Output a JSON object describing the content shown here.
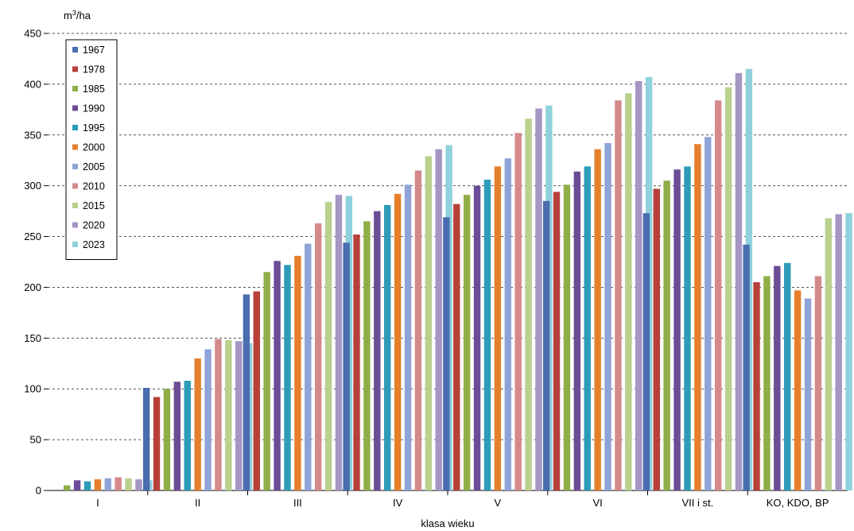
{
  "chart_data": {
    "type": "bar",
    "title": "",
    "ylabel_prefix": "m",
    "ylabel_sup": "3",
    "ylabel_suffix": "/ha",
    "xlabel": "klasa wieku",
    "ylim": [
      0,
      450
    ],
    "yticks": [
      0,
      50,
      100,
      150,
      200,
      250,
      300,
      350,
      400,
      450
    ],
    "grid": true,
    "legend_position": "top-left",
    "categories": [
      "I",
      "II",
      "III",
      "IV",
      "V",
      "VI",
      "VII i st.",
      "KO, KDO, BP"
    ],
    "series": [
      {
        "name": "1967",
        "color": "#4a6db0",
        "values": [
          0,
          101,
          193,
          244,
          269,
          285,
          273,
          242
        ]
      },
      {
        "name": "1978",
        "color": "#b8403a",
        "values": [
          0,
          92,
          196,
          252,
          282,
          294,
          297,
          205
        ]
      },
      {
        "name": "1985",
        "color": "#8fae47",
        "values": [
          5,
          100,
          215,
          265,
          291,
          301,
          305,
          211
        ]
      },
      {
        "name": "1990",
        "color": "#6b4c96",
        "values": [
          10,
          107,
          226,
          275,
          300,
          314,
          316,
          221
        ]
      },
      {
        "name": "1995",
        "color": "#2d9cb8",
        "values": [
          9,
          108,
          222,
          281,
          306,
          319,
          319,
          224
        ]
      },
      {
        "name": "2000",
        "color": "#e57f2e",
        "values": [
          11,
          130,
          231,
          292,
          319,
          336,
          341,
          197
        ]
      },
      {
        "name": "2005",
        "color": "#8ea3d6",
        "values": [
          12,
          139,
          243,
          301,
          327,
          342,
          348,
          189
        ]
      },
      {
        "name": "2010",
        "color": "#d48a8a",
        "values": [
          13,
          149,
          263,
          315,
          352,
          384,
          384,
          211
        ]
      },
      {
        "name": "2015",
        "color": "#b8d18e",
        "values": [
          12,
          148,
          284,
          329,
          366,
          391,
          397,
          268
        ]
      },
      {
        "name": "2020",
        "color": "#a596c4",
        "values": [
          11,
          147,
          291,
          336,
          376,
          403,
          411,
          272
        ]
      },
      {
        "name": "2023",
        "color": "#8fd1dc",
        "values": [
          10,
          145,
          290,
          340,
          379,
          407,
          415,
          273
        ]
      }
    ]
  }
}
